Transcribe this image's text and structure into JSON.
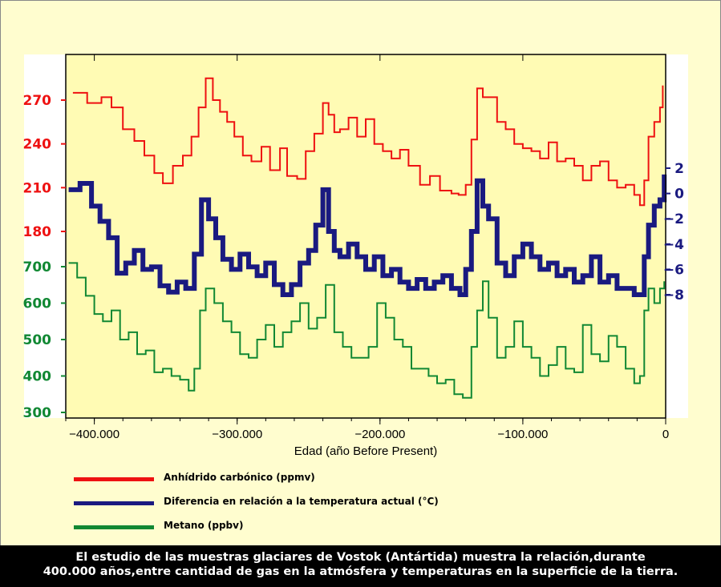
{
  "chart_data": {
    "type": "line",
    "xlabel": "Edad (año Before Present)",
    "xlim": [
      -420000,
      0
    ],
    "x_ticks": [
      -400000,
      -300000,
      -200000,
      -100000,
      0
    ],
    "x_tick_labels": [
      "−400.000",
      "−300.000",
      "−200.000",
      "−100.000",
      "0"
    ],
    "grid": false,
    "left_axis_co2": {
      "ticks": [
        180,
        210,
        240,
        270
      ],
      "labels": [
        "180",
        "210",
        "240",
        "270"
      ],
      "color": "#ee1111"
    },
    "left_axis_ch4": {
      "ticks": [
        300,
        400,
        500,
        600,
        700
      ],
      "labels": [
        "300",
        "400",
        "500",
        "600",
        "700"
      ],
      "color": "#118833"
    },
    "right_axis_temp": {
      "ticks": [
        2,
        0,
        -2,
        -4,
        -6,
        -8
      ],
      "labels": [
        "2",
        "0",
        "−2",
        "−4",
        "−6",
        "−8"
      ],
      "color": "#1a1a80"
    },
    "series": [
      {
        "name": "Anhídrido carbónico (ppmv)",
        "color": "#ee1111",
        "x": [
          -415000,
          -405000,
          -395000,
          -388000,
          -380000,
          -372000,
          -365000,
          -358000,
          -352000,
          -345000,
          -338000,
          -332000,
          -327000,
          -322000,
          -317000,
          -312000,
          -307000,
          -302000,
          -296000,
          -290000,
          -283000,
          -277000,
          -270000,
          -265000,
          -258000,
          -252000,
          -246000,
          -240000,
          -236000,
          -232000,
          -228000,
          -222000,
          -216000,
          -210000,
          -204000,
          -198000,
          -192000,
          -186000,
          -180000,
          -172000,
          -165000,
          -158000,
          -150000,
          -145000,
          -140000,
          -136000,
          -132000,
          -128000,
          -124000,
          -118000,
          -112000,
          -106000,
          -100000,
          -94000,
          -88000,
          -82000,
          -76000,
          -70000,
          -64000,
          -58000,
          -52000,
          -46000,
          -40000,
          -34000,
          -28000,
          -22000,
          -18000,
          -15000,
          -12000,
          -8000,
          -4000,
          -2000
        ],
        "values": [
          275,
          268,
          272,
          265,
          250,
          242,
          232,
          220,
          213,
          225,
          232,
          245,
          265,
          285,
          270,
          262,
          255,
          245,
          232,
          228,
          238,
          222,
          237,
          218,
          216,
          235,
          247,
          268,
          260,
          248,
          250,
          258,
          245,
          257,
          240,
          235,
          230,
          236,
          225,
          212,
          218,
          208,
          206,
          205,
          212,
          243,
          278,
          272,
          272,
          255,
          250,
          240,
          237,
          235,
          230,
          241,
          228,
          230,
          225,
          215,
          225,
          228,
          215,
          210,
          212,
          205,
          198,
          215,
          245,
          255,
          265,
          280
        ]
      },
      {
        "name": "Diferencia en relación a la temperatura actual (°C)",
        "color": "#1a1a80",
        "x": [
          -418000,
          -410000,
          -402000,
          -396000,
          -390000,
          -384000,
          -378000,
          -372000,
          -366000,
          -360000,
          -354000,
          -348000,
          -342000,
          -336000,
          -330000,
          -325000,
          -320000,
          -315000,
          -310000,
          -304000,
          -298000,
          -292000,
          -286000,
          -280000,
          -274000,
          -268000,
          -262000,
          -256000,
          -250000,
          -245000,
          -240000,
          -236000,
          -232000,
          -228000,
          -222000,
          -216000,
          -210000,
          -204000,
          -198000,
          -192000,
          -186000,
          -180000,
          -174000,
          -168000,
          -162000,
          -156000,
          -150000,
          -144000,
          -140000,
          -136000,
          -132000,
          -128000,
          -124000,
          -118000,
          -112000,
          -106000,
          -100000,
          -94000,
          -88000,
          -82000,
          -76000,
          -70000,
          -64000,
          -58000,
          -52000,
          -46000,
          -40000,
          -34000,
          -28000,
          -22000,
          -18000,
          -15000,
          -12000,
          -8000,
          -4000,
          -1000
        ],
        "values": [
          0.3,
          0.8,
          -1.0,
          -2.2,
          -3.5,
          -6.3,
          -5.5,
          -4.5,
          -6.0,
          -5.8,
          -7.3,
          -7.8,
          -7.0,
          -7.5,
          -4.8,
          -0.5,
          -2.0,
          -3.5,
          -5.2,
          -6.0,
          -4.8,
          -5.8,
          -6.5,
          -5.5,
          -7.2,
          -8.0,
          -7.2,
          -5.5,
          -4.5,
          -2.5,
          0.3,
          -3.0,
          -4.5,
          -5.0,
          -4.0,
          -5.0,
          -6.0,
          -5.0,
          -6.5,
          -6.0,
          -7.0,
          -7.5,
          -6.8,
          -7.5,
          -7.0,
          -6.5,
          -7.5,
          -8.0,
          -6.0,
          -3.0,
          1.0,
          -1.0,
          -2.0,
          -5.5,
          -6.5,
          -5.0,
          -4.0,
          -5.0,
          -6.0,
          -5.5,
          -6.5,
          -6.0,
          -7.0,
          -6.5,
          -5.0,
          -7.0,
          -6.5,
          -7.5,
          -7.5,
          -8.0,
          -8.0,
          -5.0,
          -2.5,
          -1.0,
          -0.5,
          1.5
        ]
      },
      {
        "name": "Metano (ppbv)",
        "color": "#118833",
        "x": [
          -418000,
          -412000,
          -406000,
          -400000,
          -394000,
          -388000,
          -382000,
          -376000,
          -370000,
          -364000,
          -358000,
          -352000,
          -346000,
          -340000,
          -334000,
          -330000,
          -326000,
          -322000,
          -316000,
          -310000,
          -304000,
          -298000,
          -292000,
          -286000,
          -280000,
          -274000,
          -268000,
          -262000,
          -256000,
          -250000,
          -244000,
          -238000,
          -232000,
          -226000,
          -220000,
          -214000,
          -208000,
          -202000,
          -196000,
          -190000,
          -184000,
          -178000,
          -172000,
          -166000,
          -160000,
          -154000,
          -148000,
          -142000,
          -136000,
          -132000,
          -128000,
          -124000,
          -118000,
          -112000,
          -106000,
          -100000,
          -94000,
          -88000,
          -82000,
          -76000,
          -70000,
          -64000,
          -58000,
          -52000,
          -46000,
          -40000,
          -34000,
          -28000,
          -22000,
          -18000,
          -15000,
          -12000,
          -8000,
          -4000,
          -1000
        ],
        "values": [
          710,
          670,
          620,
          570,
          550,
          580,
          500,
          520,
          460,
          470,
          410,
          420,
          400,
          390,
          360,
          420,
          580,
          640,
          600,
          550,
          520,
          460,
          450,
          500,
          540,
          480,
          520,
          550,
          600,
          530,
          560,
          650,
          520,
          480,
          450,
          450,
          480,
          600,
          560,
          500,
          480,
          420,
          420,
          400,
          380,
          390,
          350,
          340,
          480,
          580,
          660,
          560,
          450,
          480,
          550,
          480,
          450,
          400,
          430,
          480,
          420,
          410,
          540,
          460,
          440,
          510,
          480,
          420,
          380,
          400,
          580,
          640,
          600,
          640,
          660
        ]
      }
    ]
  },
  "legend": [
    {
      "label": "Anhídrido carbónico (ppmv)",
      "color": "#ee1111"
    },
    {
      "label": "Diferencia en relación a la temperatura actual (°C)",
      "color": "#1a1a80"
    },
    {
      "label": "Metano (ppbv)",
      "color": "#118833"
    }
  ],
  "caption": {
    "line1": "El estudio de las muestras glaciares de Vostok (Antártida) muestra la relación,durante",
    "line2": "400.000 años,entre cantidad de gas en la atmósfera y temperaturas en la superficie de la tierra."
  }
}
